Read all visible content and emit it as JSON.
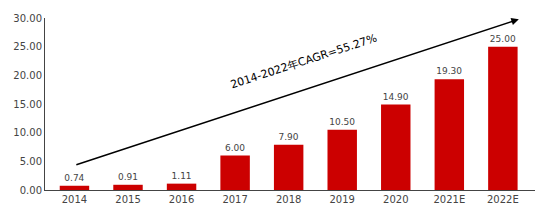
{
  "chart_data": {
    "type": "bar",
    "categories": [
      "2014",
      "2015",
      "2016",
      "2017",
      "2018",
      "2019",
      "2020",
      "2021E",
      "2022E"
    ],
    "values": [
      0.74,
      0.91,
      1.11,
      6.0,
      7.9,
      10.5,
      14.9,
      19.3,
      25.0
    ],
    "value_labels": [
      "0.74",
      "0.91",
      "1.11",
      "6.00",
      "7.90",
      "10.50",
      "14.90",
      "19.30",
      "25.00"
    ],
    "data_labels": true,
    "color": "#CC0000",
    "ylim": [
      0,
      30
    ],
    "yticks": [
      {
        "value": 0,
        "label": "0.00"
      },
      {
        "value": 5,
        "label": "5.00"
      },
      {
        "value": 10,
        "label": "10.00"
      },
      {
        "value": 15,
        "label": "15.00"
      },
      {
        "value": 20,
        "label": "20.00"
      },
      {
        "value": 25,
        "label": "25.00"
      },
      {
        "value": 30,
        "label": "30.00"
      }
    ],
    "grid": false,
    "annotation": "2014-2022年CAGR=55.27%"
  }
}
